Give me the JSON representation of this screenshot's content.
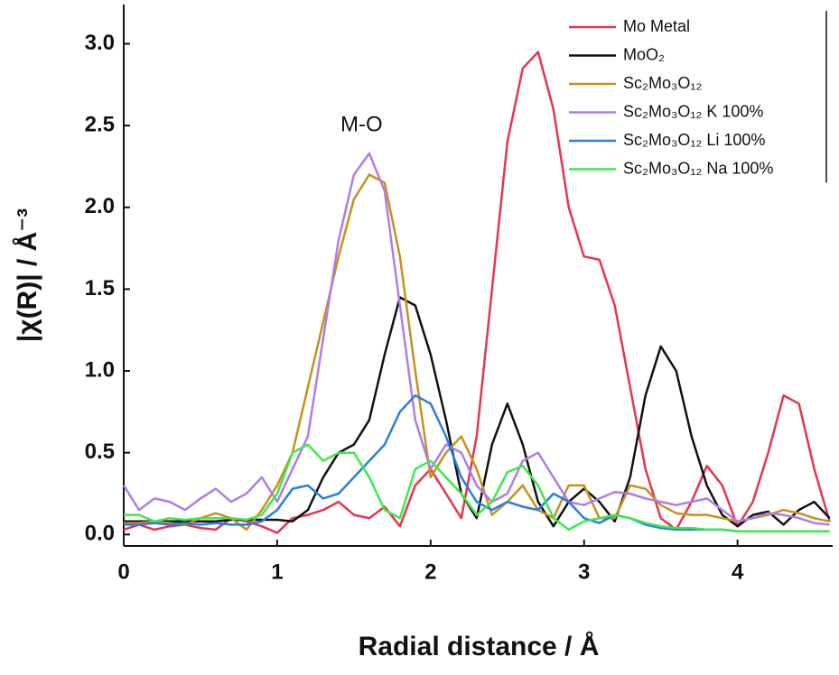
{
  "chart_data": {
    "type": "line",
    "xlabel": "Radial distance / Å",
    "ylabel": "|χ(R)| / Å⁻³",
    "annotations": [
      {
        "text": "M-O",
        "x": 1.55,
        "y": 2.5
      }
    ],
    "xlim": [
      0,
      4.62
    ],
    "ylim": [
      -0.07,
      3.24
    ],
    "xticks": [
      0,
      1,
      2,
      3,
      4
    ],
    "yticks": [
      {
        "value": 0,
        "label": "0.0"
      },
      0.5,
      {
        "value": 1,
        "label": "1.0"
      },
      1.5,
      {
        "value": 2,
        "label": "2.0"
      },
      2.5,
      {
        "value": 3,
        "label": "3.0"
      }
    ],
    "legend": "upper right",
    "x": [
      0,
      0.1,
      0.2,
      0.3,
      0.4,
      0.5,
      0.6,
      0.7,
      0.8,
      0.9,
      1.0,
      1.1,
      1.2,
      1.3,
      1.4,
      1.5,
      1.6,
      1.7,
      1.8,
      1.9,
      2.0,
      2.1,
      2.2,
      2.3,
      2.4,
      2.5,
      2.6,
      2.7,
      2.8,
      2.9,
      3.0,
      3.1,
      3.2,
      3.3,
      3.4,
      3.5,
      3.6,
      3.7,
      3.8,
      3.9,
      4.0,
      4.1,
      4.2,
      4.3,
      4.4,
      4.5,
      4.6
    ],
    "series": [
      {
        "name": "Mo Metal",
        "color": "#e8344e",
        "values": [
          0.03,
          0.06,
          0.03,
          0.05,
          0.06,
          0.04,
          0.03,
          0.1,
          0.08,
          0.05,
          0.01,
          0.1,
          0.12,
          0.15,
          0.2,
          0.12,
          0.1,
          0.17,
          0.05,
          0.3,
          0.4,
          0.25,
          0.1,
          0.6,
          1.5,
          2.4,
          2.85,
          2.95,
          2.6,
          2.0,
          1.7,
          1.68,
          1.4,
          0.9,
          0.4,
          0.1,
          0.03,
          0.2,
          0.42,
          0.3,
          0.05,
          0.2,
          0.5,
          0.85,
          0.8,
          0.4,
          0.08
        ]
      },
      {
        "name": "MoO₂",
        "color": "#111111",
        "values": [
          0.08,
          0.08,
          0.08,
          0.08,
          0.08,
          0.08,
          0.08,
          0.09,
          0.09,
          0.09,
          0.09,
          0.08,
          0.15,
          0.35,
          0.5,
          0.55,
          0.7,
          1.1,
          1.45,
          1.4,
          1.1,
          0.7,
          0.25,
          0.1,
          0.55,
          0.8,
          0.55,
          0.2,
          0.05,
          0.2,
          0.28,
          0.2,
          0.08,
          0.35,
          0.85,
          1.15,
          1.0,
          0.6,
          0.3,
          0.12,
          0.05,
          0.12,
          0.14,
          0.06,
          0.15,
          0.2,
          0.1
        ]
      },
      {
        "name": "Sc₂Mo₃O₁₂",
        "color": "#c8901c",
        "values": [
          0.07,
          0.07,
          0.08,
          0.07,
          0.06,
          0.1,
          0.13,
          0.1,
          0.03,
          0.15,
          0.3,
          0.5,
          0.9,
          1.3,
          1.7,
          2.05,
          2.2,
          2.15,
          1.7,
          1.0,
          0.35,
          0.5,
          0.6,
          0.4,
          0.12,
          0.2,
          0.3,
          0.15,
          0.1,
          0.3,
          0.3,
          0.1,
          0.1,
          0.3,
          0.28,
          0.18,
          0.13,
          0.12,
          0.12,
          0.1,
          0.08,
          0.1,
          0.12,
          0.15,
          0.13,
          0.1,
          0.08
        ]
      },
      {
        "name": "Sc₂Mo₃O₁₂ K 100%",
        "color": "#b07ce8",
        "values": [
          0.3,
          0.15,
          0.22,
          0.2,
          0.15,
          0.22,
          0.28,
          0.2,
          0.25,
          0.35,
          0.2,
          0.4,
          0.6,
          1.2,
          1.8,
          2.2,
          2.33,
          2.1,
          1.4,
          0.7,
          0.4,
          0.55,
          0.5,
          0.3,
          0.2,
          0.25,
          0.45,
          0.5,
          0.35,
          0.2,
          0.18,
          0.22,
          0.26,
          0.25,
          0.22,
          0.2,
          0.18,
          0.2,
          0.22,
          0.15,
          0.08,
          0.1,
          0.13,
          0.12,
          0.1,
          0.07,
          0.06
        ]
      },
      {
        "name": "Sc₂Mo₃O₁₂ Li 100%",
        "color": "#2a7de1",
        "values": [
          0.06,
          0.06,
          0.07,
          0.06,
          0.07,
          0.06,
          0.07,
          0.06,
          0.06,
          0.08,
          0.15,
          0.28,
          0.3,
          0.22,
          0.25,
          0.35,
          0.45,
          0.55,
          0.75,
          0.85,
          0.8,
          0.6,
          0.35,
          0.2,
          0.15,
          0.2,
          0.17,
          0.15,
          0.25,
          0.2,
          0.1,
          0.07,
          0.12,
          0.1,
          0.06,
          0.04,
          0.03,
          0.03,
          0.03,
          0.03,
          0.02,
          0.02,
          0.02,
          0.02,
          0.02,
          0.02,
          0.02
        ]
      },
      {
        "name": "Sc₂Mo₃O₁₂ Na 100%",
        "color": "#3ee84a",
        "values": [
          0.12,
          0.12,
          0.08,
          0.1,
          0.09,
          0.1,
          0.1,
          0.1,
          0.09,
          0.12,
          0.25,
          0.5,
          0.55,
          0.45,
          0.5,
          0.5,
          0.35,
          0.15,
          0.1,
          0.4,
          0.45,
          0.35,
          0.25,
          0.12,
          0.2,
          0.38,
          0.42,
          0.3,
          0.1,
          0.03,
          0.08,
          0.1,
          0.12,
          0.1,
          0.07,
          0.05,
          0.04,
          0.04,
          0.03,
          0.03,
          0.02,
          0.02,
          0.02,
          0.02,
          0.02,
          0.02,
          0.02
        ]
      }
    ]
  }
}
